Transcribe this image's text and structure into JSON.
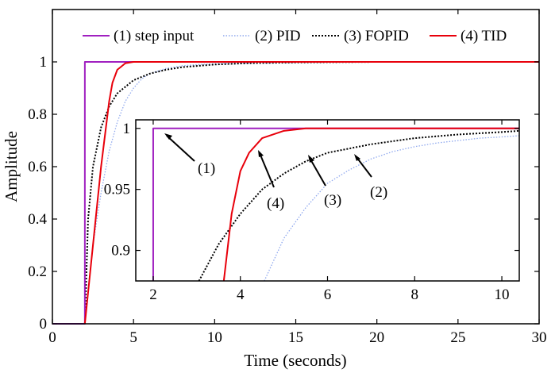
{
  "chart_data": [
    {
      "type": "line",
      "xlabel": "Time (seconds)",
      "ylabel": "Amplitude",
      "xlim": [
        0,
        30
      ],
      "ylim": [
        0,
        1.2
      ],
      "xticks": [
        0,
        5,
        10,
        15,
        20,
        25,
        30
      ],
      "yticks": [
        0,
        0.2,
        0.4,
        0.6,
        0.8,
        1
      ],
      "grid": false,
      "legend_placement": "top",
      "series": [
        {
          "name": "(1) step input",
          "color": "#a020c0",
          "style": "solid",
          "x": [
            0,
            2,
            2,
            30
          ],
          "y": [
            0,
            0,
            1,
            1
          ]
        },
        {
          "name": "(2) PID",
          "color": "#8fa8ee",
          "style": "dotted",
          "x": [
            2,
            2.5,
            3,
            3.5,
            4,
            4.5,
            5,
            5.5,
            6,
            7,
            8,
            9,
            10,
            12,
            15,
            20,
            30
          ],
          "y": [
            0,
            0.3,
            0.5,
            0.66,
            0.77,
            0.85,
            0.9,
            0.935,
            0.955,
            0.975,
            0.985,
            0.99,
            0.993,
            0.996,
            0.998,
            1,
            1
          ]
        },
        {
          "name": "(3) FOPID",
          "color": "#000000",
          "style": "dotted",
          "x": [
            2,
            2.2,
            2.5,
            3,
            3.5,
            4,
            5,
            6,
            7,
            8,
            10,
            12,
            15,
            20,
            30
          ],
          "y": [
            0,
            0.4,
            0.6,
            0.75,
            0.83,
            0.88,
            0.93,
            0.955,
            0.97,
            0.98,
            0.99,
            0.995,
            0.998,
            1,
            1
          ]
        },
        {
          "name": "(4) TID",
          "color": "#e8000b",
          "style": "solid",
          "x": [
            2,
            2.5,
            3,
            3.5,
            3.7,
            4,
            4.2,
            4.5,
            5,
            6,
            8,
            10,
            30
          ],
          "y": [
            0,
            0.3,
            0.6,
            0.85,
            0.92,
            0.97,
            0.98,
            0.995,
            1,
            1,
            1,
            1,
            1
          ]
        }
      ]
    },
    {
      "type": "line",
      "xlim": [
        1.6,
        10.4
      ],
      "ylim": [
        0.875,
        1.007
      ],
      "xticks": [
        2,
        4,
        6,
        8,
        10
      ],
      "yticks": [
        0.9,
        0.95,
        1
      ],
      "ytick_labels": [
        "0.9",
        "0.95",
        "1"
      ],
      "series": [
        {
          "name": "(1) step input",
          "color": "#a020c0",
          "style": "solid",
          "x": [
            2,
            2,
            10.4
          ],
          "y": [
            0.875,
            1,
            1
          ]
        },
        {
          "name": "(2) PID",
          "color": "#8fa8ee",
          "style": "dotted",
          "x": [
            4.55,
            5,
            5.5,
            6,
            6.5,
            7,
            7.5,
            8,
            8.5,
            9,
            9.5,
            10,
            10.4
          ],
          "y": [
            0.875,
            0.91,
            0.935,
            0.955,
            0.966,
            0.975,
            0.981,
            0.985,
            0.988,
            0.99,
            0.992,
            0.993,
            0.994
          ]
        },
        {
          "name": "(3) FOPID",
          "color": "#000000",
          "style": "dotted",
          "x": [
            3.05,
            3.5,
            4,
            4.5,
            5,
            5.5,
            6,
            7,
            8,
            9,
            10,
            10.4
          ],
          "y": [
            0.875,
            0.905,
            0.93,
            0.95,
            0.963,
            0.973,
            0.98,
            0.987,
            0.992,
            0.995,
            0.997,
            0.998
          ]
        },
        {
          "name": "(4) TID",
          "color": "#e8000b",
          "style": "solid",
          "x": [
            3.62,
            3.8,
            4,
            4.2,
            4.5,
            5,
            5.5,
            6,
            10.4
          ],
          "y": [
            0.875,
            0.93,
            0.965,
            0.98,
            0.992,
            0.998,
            1,
            1,
            1
          ]
        }
      ],
      "annotations": [
        {
          "label": "(1)"
        },
        {
          "label": "(2)"
        },
        {
          "label": "(3)"
        },
        {
          "label": "(4)"
        }
      ]
    }
  ]
}
